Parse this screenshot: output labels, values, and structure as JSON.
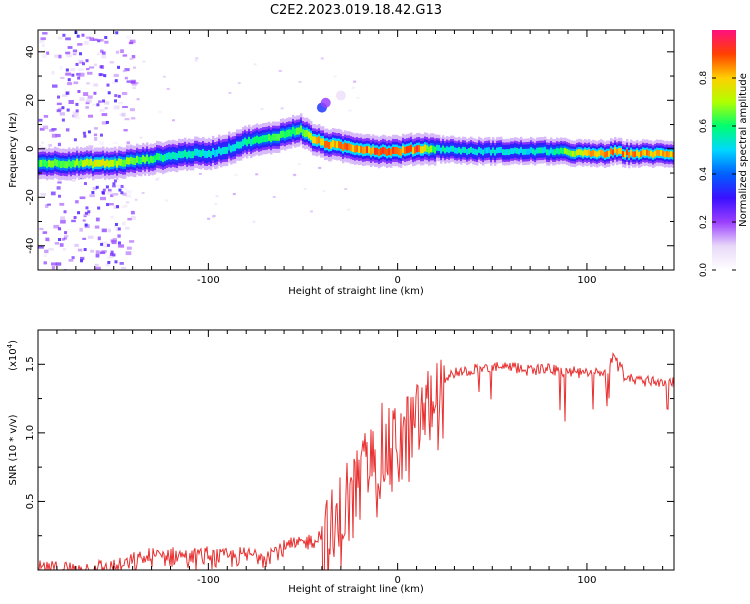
{
  "title": "C2E2.2023.019.18.42.G13",
  "chart_data": [
    {
      "type": "heatmap",
      "xlabel": "Height of straight line (km)",
      "ylabel": "Frequency (Hz)",
      "xlim": [
        -190,
        146
      ],
      "ylim": [
        -50,
        49
      ],
      "xticks": [
        -100,
        0,
        100
      ],
      "yticks": [
        -40,
        -20,
        0,
        20,
        40
      ],
      "grid": false,
      "colorbar": {
        "label": "Normalized spectral amplitude",
        "range": [
          0.0,
          1.0
        ],
        "ticks": [
          0.0,
          0.2,
          0.4,
          0.6,
          0.8
        ],
        "colormap": [
          "#ffffff",
          "#e8d8f8",
          "#9a40ff",
          "#3a10ff",
          "#0060ff",
          "#00d8ff",
          "#00ff70",
          "#b0ff00",
          "#ffd000",
          "#ff4000",
          "#ff1080"
        ]
      },
      "ridge": {
        "x": [
          -190,
          -170,
          -160,
          -150,
          -140,
          -130,
          -120,
          -110,
          -100,
          -90,
          -80,
          -70,
          -60,
          -52,
          -45,
          -38,
          -30,
          -20,
          -10,
          0,
          10,
          20,
          40,
          60,
          80,
          100,
          110,
          115,
          120,
          146
        ],
        "y": [
          -6,
          -6,
          -6,
          -6,
          -5,
          -4,
          -3,
          -2,
          -2,
          0,
          3,
          4,
          6,
          8,
          4,
          2,
          1,
          0,
          -1,
          -1,
          0,
          0,
          -1,
          -1,
          -1,
          -2,
          -2,
          -1,
          -2,
          -2
        ],
        "peak_amplitude": [
          0.7,
          0.7,
          0.8,
          0.75,
          0.7,
          0.65,
          0.6,
          0.6,
          0.55,
          0.55,
          0.6,
          0.65,
          0.7,
          0.7,
          0.85,
          0.9,
          0.9,
          0.9,
          0.95,
          0.9,
          0.95,
          0.6,
          0.55,
          0.55,
          0.6,
          0.85,
          0.9,
          0.95,
          0.9,
          0.85
        ]
      }
    },
    {
      "type": "line",
      "xlabel": "Height of straight line (km)",
      "ylabel": "SNR (10 * v/v)",
      "multiplier_label": "(x10",
      "multiplier_exp": "4",
      "xlim": [
        -190,
        146
      ],
      "ylim": [
        0.0,
        1.75
      ],
      "xticks": [
        -100,
        0,
        100
      ],
      "yticks": [
        0.5,
        1.0,
        1.5
      ],
      "grid": false,
      "series": [
        {
          "color": "#e83030",
          "x": [
            -190,
            -170,
            -150,
            -140,
            -130,
            -120,
            -110,
            -100,
            -90,
            -80,
            -70,
            -60,
            -50,
            -40,
            -35,
            -30,
            -25,
            -20,
            -15,
            -10,
            -5,
            0,
            5,
            10,
            15,
            20,
            30,
            40,
            50,
            60,
            70,
            80,
            90,
            100,
            110,
            115,
            120,
            130,
            146
          ],
          "values": [
            0.03,
            0.03,
            0.04,
            0.08,
            0.12,
            0.14,
            0.12,
            0.13,
            0.12,
            0.13,
            0.14,
            0.18,
            0.22,
            0.28,
            0.38,
            0.5,
            0.65,
            0.78,
            0.88,
            0.95,
            1.0,
            1.05,
            1.1,
            1.2,
            1.3,
            1.38,
            1.45,
            1.48,
            1.49,
            1.49,
            1.48,
            1.48,
            1.46,
            1.45,
            1.44,
            1.6,
            1.42,
            1.4,
            1.38
          ]
        }
      ]
    }
  ]
}
